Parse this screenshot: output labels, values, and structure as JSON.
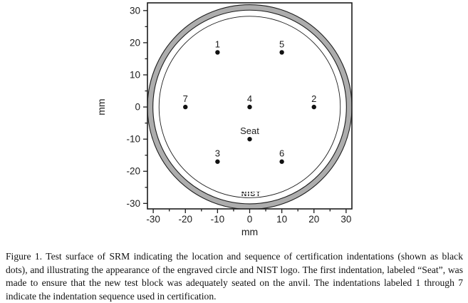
{
  "figure": {
    "caption": {
      "text": "Figure 1.  Test surface of SRM indicating the location and sequence of certification indentations (shown as black dots), and illustrating the appearance of the engraved circle and NIST logo.  The first indentation, labeled “Seat”, was made to ensure that the new test block was adequately seated on the anvil.  The indentations labeled 1 through 7 indicate the indentation sequence used in certification."
    }
  },
  "chart_data": {
    "type": "scatter",
    "title": "",
    "xlabel": "mm",
    "ylabel": "mm",
    "xlim": [
      -31.8,
      31.8
    ],
    "ylim": [
      -31.7,
      32.4
    ],
    "x_ticks": [
      -30,
      -20,
      -10,
      0,
      10,
      20,
      30
    ],
    "y_ticks": [
      30,
      20,
      10,
      0,
      -10,
      -20,
      -30
    ],
    "grid": false,
    "legend": "none",
    "points": [
      {
        "label": "1",
        "x": -10,
        "y": 17
      },
      {
        "label": "5",
        "x": 10,
        "y": 17
      },
      {
        "label": "7",
        "x": -20,
        "y": 0
      },
      {
        "label": "4",
        "x": 0,
        "y": 0
      },
      {
        "label": "2",
        "x": 20,
        "y": 0
      },
      {
        "label": "Seat",
        "x": 0,
        "y": -10
      },
      {
        "label": "3",
        "x": -10,
        "y": -17
      },
      {
        "label": "6",
        "x": 10,
        "y": -17
      }
    ],
    "circles": {
      "block_edge_outer_r": 31.8,
      "block_edge_inner_r": 30.1,
      "engraved_r": 28.2
    },
    "nist_logo": {
      "text": "NIST",
      "x": 0.5,
      "y": -26.8
    },
    "colors": {
      "line": "#1c1c1c",
      "ring_fill": "#adadad",
      "dot": "#111111",
      "background": "#ffffff"
    },
    "dot_radius_px": 3.2
  }
}
